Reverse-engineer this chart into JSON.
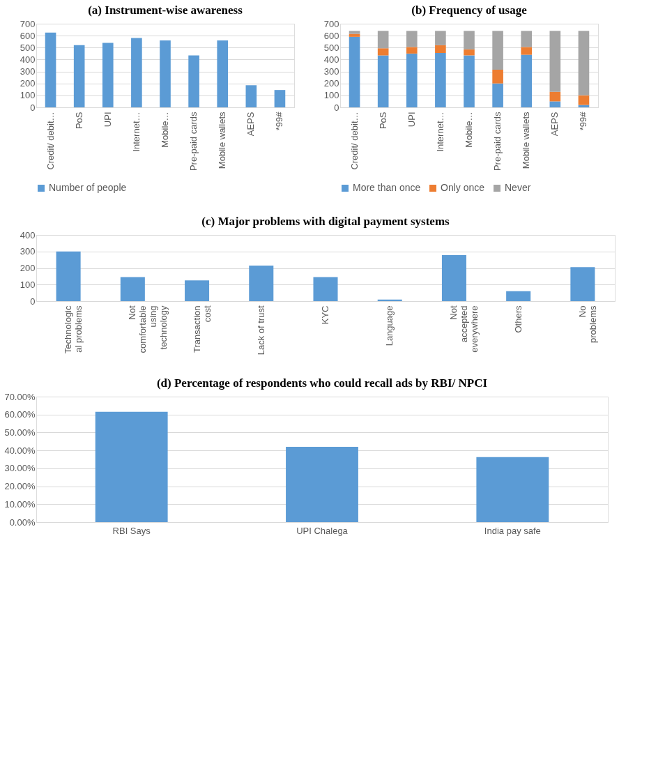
{
  "chart_data": [
    {
      "type": "bar",
      "title": "(a) Instrument-wise awareness",
      "categories": [
        "Credit/ debit…",
        "PoS",
        "UPI",
        "Internet…",
        "Mobile…",
        "Pre-paid cards",
        "Mobile wallets",
        "AEPS",
        "*99#"
      ],
      "series": [
        {
          "name": "Number of people",
          "color": "#5b9bd5",
          "values": [
            625,
            520,
            540,
            580,
            560,
            435,
            560,
            185,
            145
          ]
        }
      ],
      "ylim": [
        0,
        700
      ],
      "yticks": [
        0,
        100,
        200,
        300,
        400,
        500,
        600,
        700
      ],
      "grid": "y",
      "legend": "bottom"
    },
    {
      "type": "bar",
      "title": "(b) Frequency of usage",
      "categories": [
        "Credit/ debit…",
        "PoS",
        "UPI",
        "Internet…",
        "Mobile…",
        "Pre-paid cards",
        "Mobile wallets",
        "AEPS",
        "*99#"
      ],
      "stacked": true,
      "series": [
        {
          "name": "More than once",
          "color": "#5b9bd5",
          "values": [
            590,
            435,
            450,
            455,
            435,
            200,
            440,
            50,
            20
          ]
        },
        {
          "name": "Only once",
          "color": "#ed7d31",
          "values": [
            25,
            60,
            55,
            65,
            50,
            115,
            65,
            80,
            80
          ]
        },
        {
          "name": "Never",
          "color": "#a5a5a5",
          "values": [
            25,
            145,
            135,
            120,
            155,
            325,
            135,
            510,
            540
          ]
        }
      ],
      "ylim": [
        0,
        700
      ],
      "yticks": [
        0,
        100,
        200,
        300,
        400,
        500,
        600,
        700
      ],
      "grid": "y",
      "legend": "bottom"
    },
    {
      "type": "bar",
      "title": "(c) Major problems with digital payment systems",
      "categories": [
        "Technologic\nal problems",
        "Not\ncomfortable\nusing\ntechnology",
        "Transaction\ncost",
        "Lack of trust",
        "KYC",
        "Language",
        "Not\naccepted\neverywhere",
        "Others",
        "No\nproblems"
      ],
      "series": [
        {
          "color": "#5b9bd5",
          "values": [
            300,
            145,
            125,
            215,
            145,
            10,
            278,
            60,
            205
          ]
        }
      ],
      "ylim": [
        0,
        400
      ],
      "yticks": [
        0,
        100,
        200,
        300,
        400
      ],
      "grid": "y"
    },
    {
      "type": "bar",
      "title": "(d) Percentage of respondents who could recall ads by RBI/ NPCI",
      "categories": [
        "RBI Says",
        "UPI Chalega",
        "India pay safe"
      ],
      "series": [
        {
          "color": "#5b9bd5",
          "values": [
            61.5,
            42,
            36.3
          ]
        }
      ],
      "ylim": [
        0,
        70
      ],
      "yticks": [
        {
          "value": 0,
          "label": "0.00%"
        },
        {
          "value": 10,
          "label": "10.00%"
        },
        {
          "value": 20,
          "label": "20.00%"
        },
        {
          "value": 30,
          "label": "30.00%"
        },
        {
          "value": 40,
          "label": "40.00%"
        },
        {
          "value": 50,
          "label": "50.00%"
        },
        {
          "value": 60,
          "label": "60.00%"
        },
        {
          "value": 70,
          "label": "70.00%"
        }
      ],
      "grid": "y"
    }
  ]
}
